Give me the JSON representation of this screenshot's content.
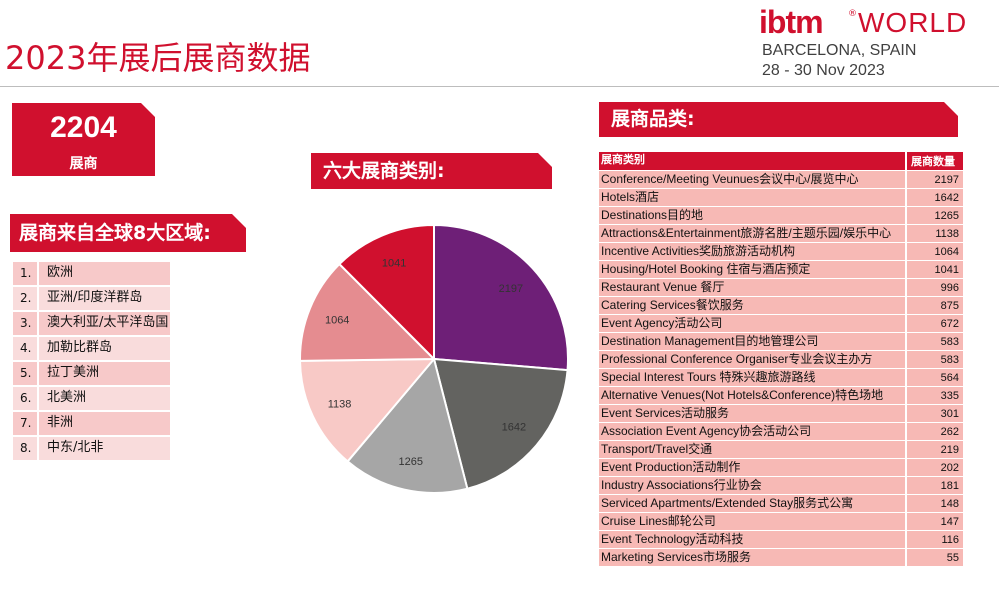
{
  "title": "2023年展后展商数据",
  "logo": {
    "brand": "ibtm",
    "reg": "®",
    "world": "WORLD",
    "city": "BARCELONA, SPAIN",
    "dates": "28 - 30 Nov 2023"
  },
  "exhibitors": {
    "count": "2204",
    "label": "展商"
  },
  "regions": {
    "header": "展商来自全球8大区域:",
    "items": [
      {
        "idx": "1.",
        "name": "欧洲"
      },
      {
        "idx": "2.",
        "name": "亚洲/印度洋群岛"
      },
      {
        "idx": "3.",
        "name": "澳大利亚/太平洋岛国"
      },
      {
        "idx": "4.",
        "name": "加勒比群岛"
      },
      {
        "idx": "5.",
        "name": "拉丁美洲"
      },
      {
        "idx": "6.",
        "name": "北美洲"
      },
      {
        "idx": "7.",
        "name": "非洲"
      },
      {
        "idx": "8.",
        "name": "中东/北非"
      }
    ]
  },
  "types_header": "六大展商类别:",
  "categories": {
    "header": "展商品类:",
    "col1": "展商类别",
    "col2": "展商数量",
    "rows": [
      {
        "name": "Conference/Meeting Veunues会议中心/展览中心",
        "value": "2197"
      },
      {
        "name": "Hotels酒店",
        "value": "1642"
      },
      {
        "name": "Destinations目的地",
        "value": "1265"
      },
      {
        "name": "Attractions&Entertainment旅游名胜/主题乐园/娱乐中心",
        "value": "1138"
      },
      {
        "name": "Incentive Activities奖励旅游活动机构",
        "value": "1064"
      },
      {
        "name": "Housing/Hotel Booking 住宿与酒店预定",
        "value": "1041"
      },
      {
        "name": "Restaurant Venue 餐厅",
        "value": "996"
      },
      {
        "name": "Catering Services餐饮服务",
        "value": "875"
      },
      {
        "name": "Event Agency活动公司",
        "value": "672"
      },
      {
        "name": "Destination Management目的地管理公司",
        "value": "583"
      },
      {
        "name": "Professional Conference Organiser专业会议主办方",
        "value": "583"
      },
      {
        "name": "Special Interest Tours 特殊兴趣旅游路线",
        "value": "564"
      },
      {
        "name": "Alternative Venues(Not Hotels&Conference)特色场地",
        "value": "335"
      },
      {
        "name": "Event Services活动服务",
        "value": "301"
      },
      {
        "name": "Association Event Agency协会活动公司",
        "value": "262"
      },
      {
        "name": "Transport/Travel交通",
        "value": "219"
      },
      {
        "name": "Event Production活动制作",
        "value": "202"
      },
      {
        "name": "Industry Associations行业协会",
        "value": "181"
      },
      {
        "name": "Serviced Apartments/Extended Stay服务式公寓",
        "value": "148"
      },
      {
        "name": "Cruise Lines邮轮公司",
        "value": "147"
      },
      {
        "name": "Event Technology活动科技",
        "value": "116"
      },
      {
        "name": "Marketing Services市场服务",
        "value": "55"
      }
    ]
  },
  "chart_data": {
    "type": "pie",
    "title": "",
    "values": [
      2197,
      1642,
      1265,
      1138,
      1064,
      1041
    ],
    "labels": [
      "2197",
      "1642",
      "1265",
      "1138",
      "1064",
      "1041"
    ],
    "colors": [
      "#6e1f77",
      "#636360",
      "#a6a6a6",
      "#f8c9c6",
      "#e58c90",
      "#d0102e"
    ]
  }
}
